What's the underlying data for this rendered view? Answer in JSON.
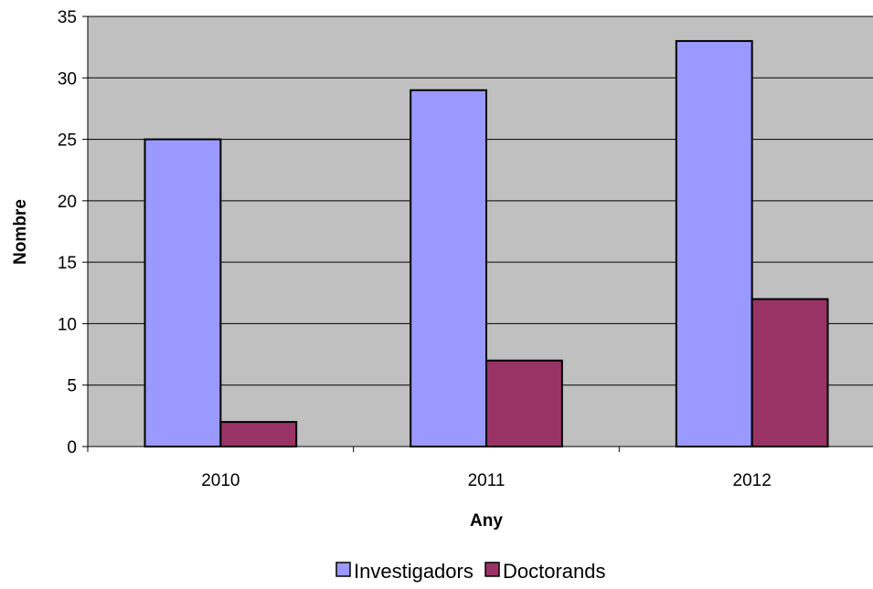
{
  "chart_data": {
    "type": "bar",
    "title": "",
    "xlabel": "Any",
    "ylabel": "Nombre",
    "categories": [
      "2010",
      "2011",
      "2012"
    ],
    "series": [
      {
        "name": "Investigadors",
        "values": [
          25,
          29,
          33
        ],
        "color": "#9999ff"
      },
      {
        "name": "Doctorands",
        "values": [
          2,
          7,
          12
        ],
        "color": "#993366"
      }
    ],
    "ylim": [
      0,
      35
    ],
    "yticks": [
      0,
      5,
      10,
      15,
      20,
      25,
      30,
      35
    ],
    "grid": true,
    "plot_background": "#c0c0c0",
    "legend_position": "bottom"
  }
}
